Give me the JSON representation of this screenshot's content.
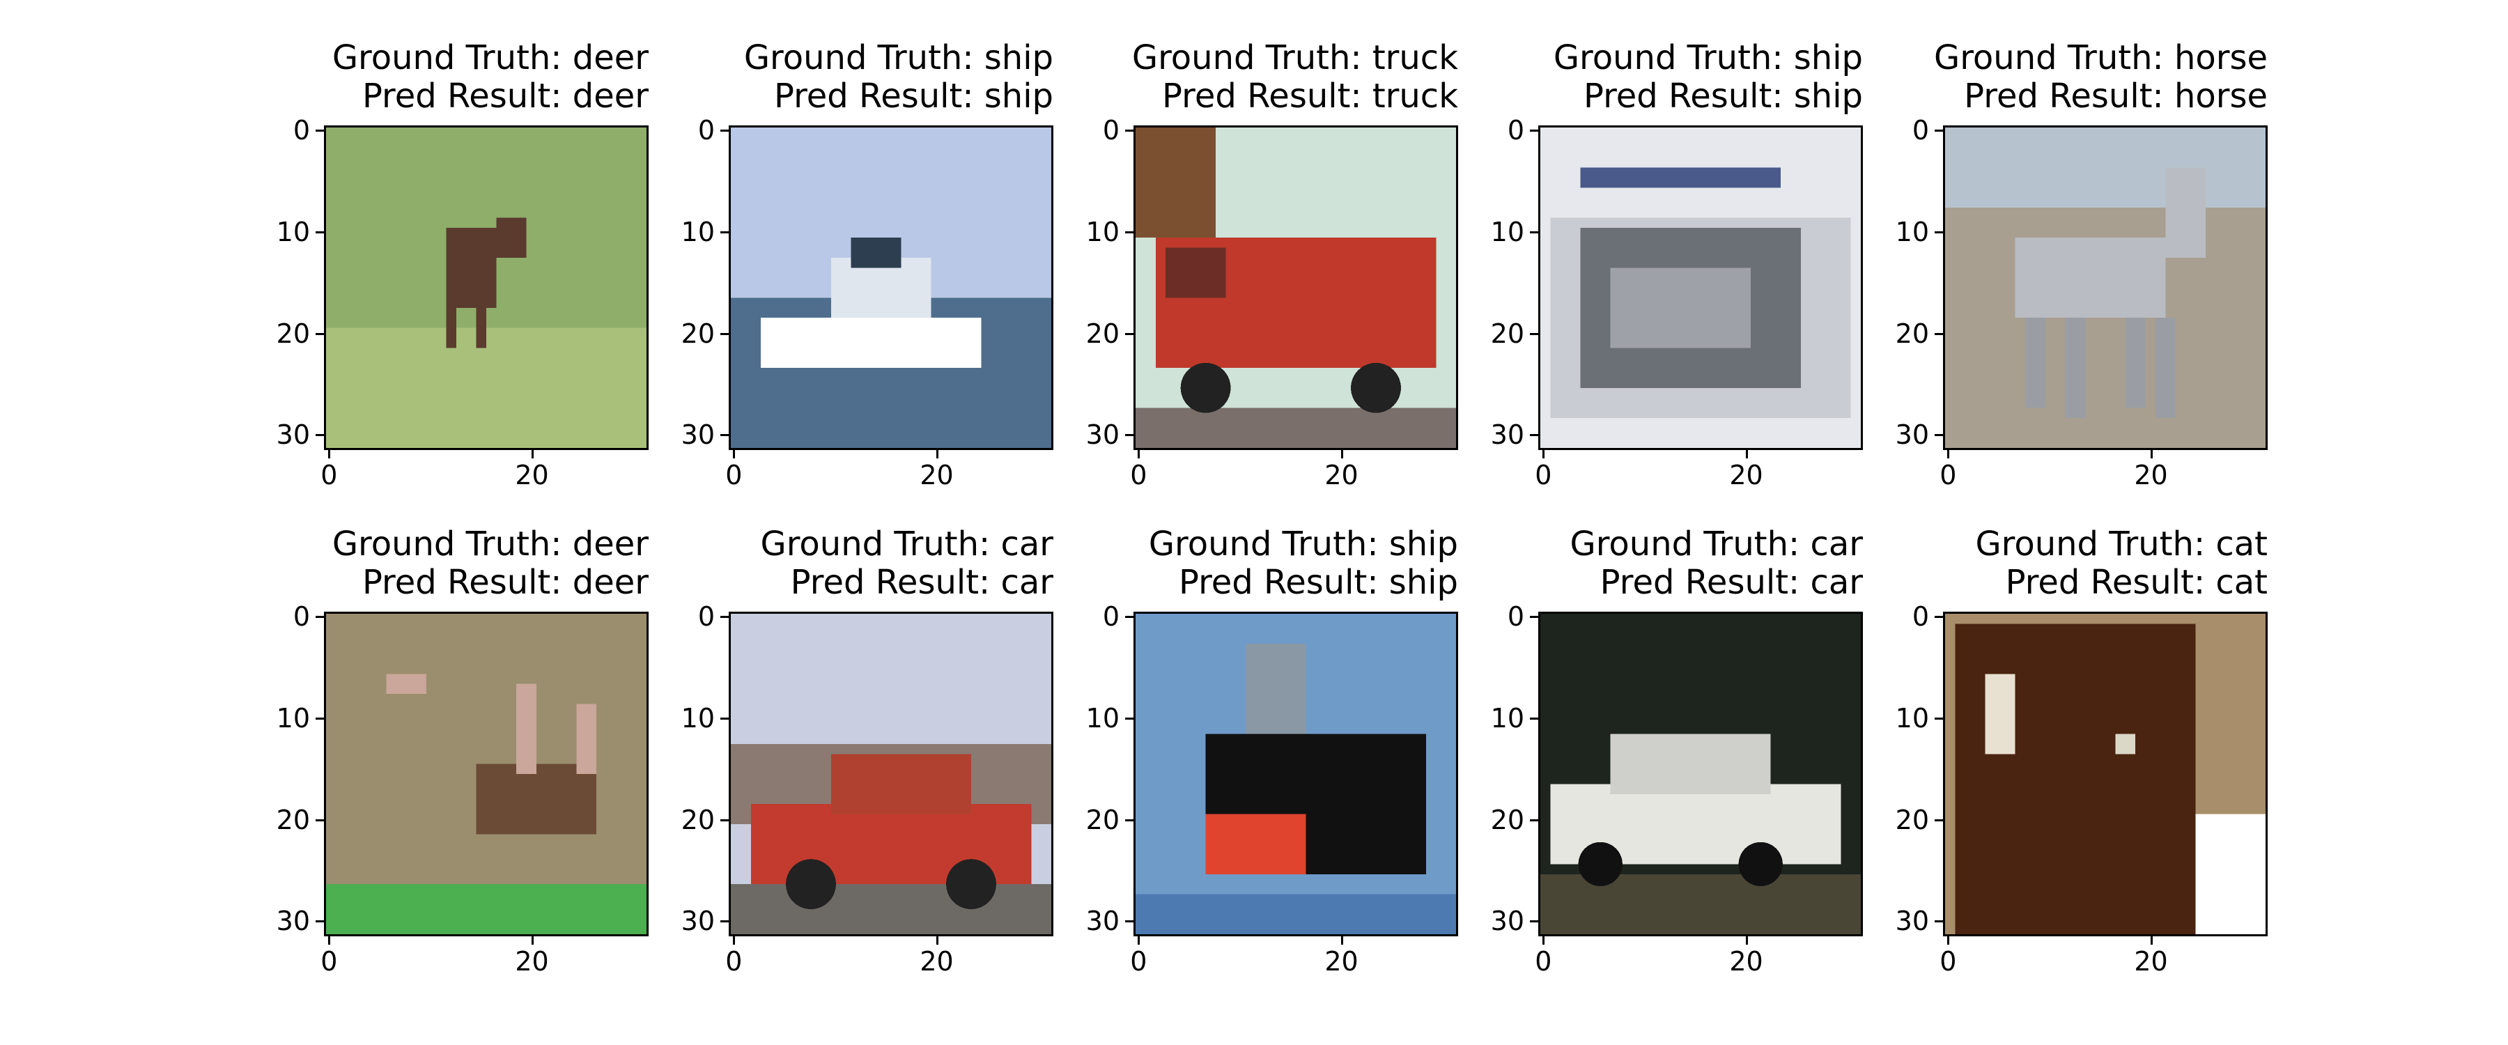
{
  "panels": [
    {
      "gt_label": "Ground Truth: deer",
      "pred_label": "Pred Result: deer",
      "scene": "deer-grass",
      "colors": {
        "bg": "#8fae6a",
        "accent": "#5a3b2e",
        "ground": "#a8c07a"
      }
    },
    {
      "gt_label": "Ground Truth: ship",
      "pred_label": "Pred Result: ship",
      "scene": "boat-water",
      "colors": {
        "bg": "#b9c8e6",
        "accent": "#ffffff",
        "ground": "#4f6e8e"
      }
    },
    {
      "gt_label": "Ground Truth: truck",
      "pred_label": "Pred Result: truck",
      "scene": "truck-red",
      "colors": {
        "bg": "#cfe3d8",
        "accent": "#c0392b",
        "ground": "#7a6f6a"
      }
    },
    {
      "gt_label": "Ground Truth: ship",
      "pred_label": "Pred Result: ship",
      "scene": "ship-gray",
      "colors": {
        "bg": "#e6e8ee",
        "accent": "#6b6f76",
        "ground": "#c9ccd2"
      }
    },
    {
      "gt_label": "Ground Truth: horse",
      "pred_label": "Pred Result: horse",
      "scene": "horse-gray",
      "colors": {
        "bg": "#c9c1b2",
        "accent": "#b9bcc2",
        "ground": "#a89f90"
      }
    },
    {
      "gt_label": "Ground Truth: deer",
      "pred_label": "Pred Result: deer",
      "scene": "elk-field",
      "colors": {
        "bg": "#9b8e6f",
        "accent": "#6b4b36",
        "ground": "#4caf50"
      }
    },
    {
      "gt_label": "Ground Truth: car",
      "pred_label": "Pred Result: car",
      "scene": "car-red",
      "colors": {
        "bg": "#c9cfe0",
        "accent": "#c23b2e",
        "ground": "#6d6a66"
      }
    },
    {
      "gt_label": "Ground Truth: ship",
      "pred_label": "Pred Result: ship",
      "scene": "ship-black",
      "colors": {
        "bg": "#6f9bc9",
        "accent": "#111111",
        "ground": "#e0442e"
      }
    },
    {
      "gt_label": "Ground Truth: car",
      "pred_label": "Pred Result: car",
      "scene": "car-white",
      "colors": {
        "bg": "#1e241e",
        "accent": "#e6e6e0",
        "ground": "#4a4636"
      }
    },
    {
      "gt_label": "Ground Truth: cat",
      "pred_label": "Pred Result: cat",
      "scene": "cat-brown",
      "colors": {
        "bg": "#a88e6a",
        "accent": "#4a2410",
        "ground": "#ffffff"
      }
    }
  ],
  "axes": {
    "y_ticks": [
      "0",
      "10",
      "20",
      "30"
    ],
    "x_ticks": [
      "0",
      "20"
    ]
  }
}
